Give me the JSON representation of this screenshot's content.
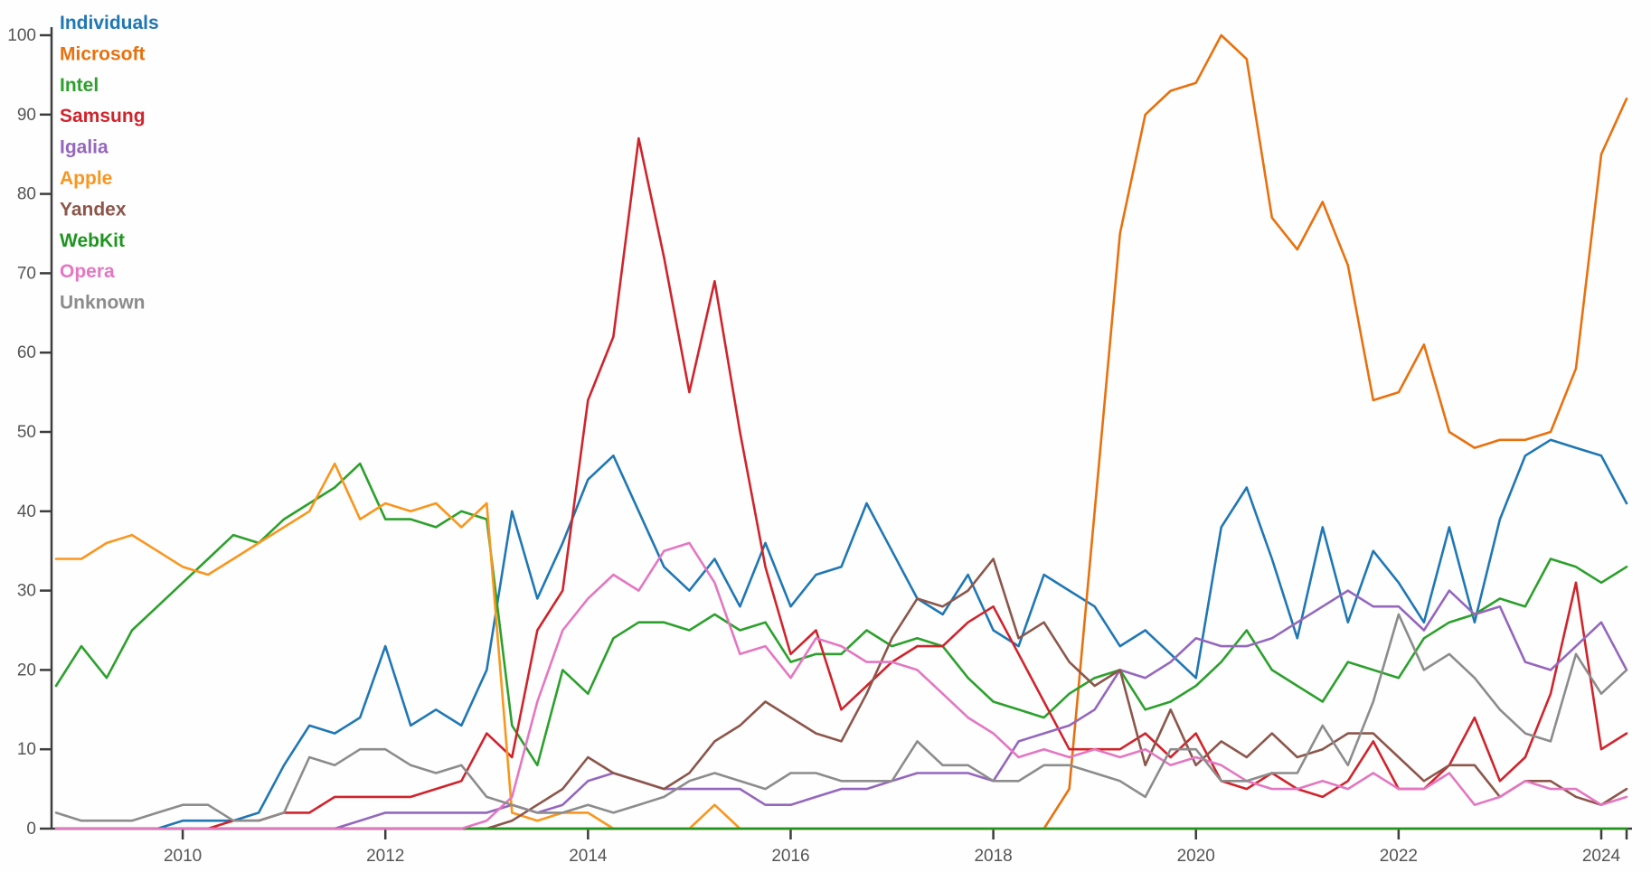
{
  "chart_data": {
    "type": "line",
    "description": "Share of contributions (%) by affiliation over time, quarterly",
    "x": {
      "start_year": 2008,
      "start_quarter": 4,
      "points": 63,
      "tick_years": [
        2010,
        2012,
        2014,
        2016,
        2018,
        2020,
        2022,
        2024
      ],
      "has_end_tick": true
    },
    "y": {
      "min": 0,
      "max": 100,
      "tick_step": 10,
      "tick_labels": [
        "0",
        "10",
        "20",
        "30",
        "40",
        "50",
        "60",
        "70",
        "80",
        "90",
        "100"
      ]
    },
    "grid": false,
    "legend_position": "top-left",
    "axis_color": "#3d3d3d",
    "tick_label_color": "#555555",
    "series": [
      {
        "name": "Individuals",
        "color": "#1f77b4",
        "values": [
          0,
          0,
          0,
          0,
          0,
          1,
          1,
          1,
          2,
          8,
          13,
          12,
          14,
          23,
          13,
          15,
          13,
          20,
          40,
          29,
          36,
          44,
          47,
          40,
          33,
          30,
          34,
          28,
          36,
          28,
          32,
          33,
          41,
          35,
          29,
          27,
          32,
          25,
          23,
          32,
          30,
          28,
          23,
          25,
          22,
          19,
          38,
          43,
          34,
          24,
          38,
          26,
          35,
          31,
          26,
          38,
          26,
          39,
          47,
          49,
          48,
          47,
          41
        ]
      },
      {
        "name": "Microsoft",
        "color": "#e8710e",
        "values": [
          0,
          0,
          0,
          0,
          0,
          0,
          0,
          0,
          0,
          0,
          0,
          0,
          0,
          0,
          0,
          0,
          0,
          0,
          0,
          0,
          0,
          0,
          0,
          0,
          0,
          0,
          0,
          0,
          0,
          0,
          0,
          0,
          0,
          0,
          0,
          0,
          0,
          0,
          0,
          0,
          5,
          40,
          75,
          90,
          93,
          94,
          100,
          97,
          77,
          73,
          79,
          71,
          54,
          55,
          61,
          50,
          48,
          49,
          49,
          50,
          58,
          85,
          92
        ]
      },
      {
        "name": "Intel",
        "color": "#2ca02c",
        "values": [
          18,
          23,
          19,
          25,
          28,
          31,
          34,
          37,
          36,
          39,
          41,
          43,
          46,
          39,
          39,
          38,
          40,
          39,
          13,
          8,
          20,
          17,
          24,
          26,
          26,
          25,
          27,
          25,
          26,
          21,
          22,
          22,
          25,
          23,
          24,
          23,
          19,
          16,
          15,
          14,
          17,
          19,
          20,
          15,
          16,
          18,
          21,
          25,
          20,
          18,
          16,
          21,
          20,
          19,
          24,
          26,
          27,
          29,
          28,
          34,
          33,
          31,
          33
        ]
      },
      {
        "name": "Samsung",
        "color": "#d0242c",
        "values": [
          0,
          0,
          0,
          0,
          0,
          0,
          0,
          1,
          1,
          2,
          2,
          4,
          4,
          4,
          4,
          5,
          6,
          12,
          9,
          25,
          30,
          54,
          62,
          87,
          72,
          55,
          69,
          50,
          33,
          22,
          25,
          15,
          18,
          21,
          23,
          23,
          26,
          28,
          22,
          16,
          10,
          10,
          10,
          12,
          9,
          12,
          6,
          5,
          7,
          5,
          4,
          6,
          11,
          5,
          5,
          8,
          14,
          6,
          9,
          17,
          31,
          10,
          12
        ]
      },
      {
        "name": "Igalia",
        "color": "#9467bd",
        "values": [
          0,
          0,
          0,
          0,
          0,
          0,
          0,
          0,
          0,
          0,
          0,
          0,
          1,
          2,
          2,
          2,
          2,
          2,
          3,
          2,
          3,
          6,
          7,
          6,
          5,
          5,
          5,
          5,
          3,
          3,
          4,
          5,
          5,
          6,
          7,
          7,
          7,
          6,
          11,
          12,
          13,
          15,
          20,
          19,
          21,
          24,
          23,
          23,
          24,
          26,
          28,
          30,
          28,
          28,
          25,
          30,
          27,
          28,
          21,
          20,
          23,
          26,
          20
        ]
      },
      {
        "name": "Apple",
        "color": "#f9961e",
        "values": [
          34,
          34,
          36,
          37,
          35,
          33,
          32,
          34,
          36,
          38,
          40,
          46,
          39,
          41,
          40,
          41,
          38,
          41,
          2,
          1,
          2,
          2,
          0,
          0,
          0,
          0,
          3,
          0,
          0,
          0,
          0,
          0,
          0,
          0,
          0,
          0,
          0,
          0,
          0,
          0,
          0,
          0,
          0,
          0,
          0,
          0,
          0,
          0,
          0,
          0,
          0,
          0,
          0,
          0,
          0,
          0,
          0,
          0,
          0,
          0,
          0,
          0,
          0
        ]
      },
      {
        "name": "Yandex",
        "color": "#8c564b",
        "values": [
          0,
          0,
          0,
          0,
          0,
          0,
          0,
          0,
          0,
          0,
          0,
          0,
          0,
          0,
          0,
          0,
          0,
          0,
          1,
          3,
          5,
          9,
          7,
          6,
          5,
          7,
          11,
          13,
          16,
          14,
          12,
          11,
          17,
          24,
          29,
          28,
          30,
          34,
          24,
          26,
          21,
          18,
          20,
          8,
          15,
          8,
          11,
          9,
          12,
          9,
          10,
          12,
          12,
          9,
          6,
          8,
          8,
          4,
          6,
          6,
          4,
          3,
          5
        ]
      },
      {
        "name": "WebKit",
        "color": "#1f9420",
        "values": [
          0,
          0,
          0,
          0,
          0,
          0,
          0,
          0,
          0,
          0,
          0,
          0,
          0,
          0,
          0,
          0,
          0,
          0,
          0,
          0,
          0,
          0,
          0,
          0,
          0,
          0,
          0,
          0,
          0,
          0,
          0,
          0,
          0,
          0,
          0,
          0,
          0,
          0,
          0,
          0,
          0,
          0,
          0,
          0,
          0,
          0,
          0,
          0,
          0,
          0,
          0,
          0,
          0,
          0,
          0,
          0,
          0,
          0,
          0,
          0,
          0,
          0,
          0
        ]
      },
      {
        "name": "Opera",
        "color": "#e377c2",
        "values": [
          0,
          0,
          0,
          0,
          0,
          0,
          0,
          0,
          0,
          0,
          0,
          0,
          0,
          0,
          0,
          0,
          0,
          1,
          4,
          16,
          25,
          29,
          32,
          30,
          35,
          36,
          31,
          22,
          23,
          19,
          24,
          23,
          21,
          21,
          20,
          17,
          14,
          12,
          9,
          10,
          9,
          10,
          9,
          10,
          8,
          9,
          8,
          6,
          5,
          5,
          6,
          5,
          7,
          5,
          5,
          7,
          3,
          4,
          6,
          5,
          5,
          3,
          4
        ]
      },
      {
        "name": "Unknown",
        "color": "#8c8c8c",
        "values": [
          2,
          1,
          1,
          1,
          2,
          3,
          3,
          1,
          1,
          2,
          9,
          8,
          10,
          10,
          8,
          7,
          8,
          4,
          3,
          2,
          2,
          3,
          2,
          3,
          4,
          6,
          7,
          6,
          5,
          7,
          7,
          6,
          6,
          6,
          11,
          8,
          8,
          6,
          6,
          8,
          8,
          7,
          6,
          4,
          10,
          10,
          6,
          6,
          7,
          7,
          13,
          8,
          16,
          27,
          20,
          22,
          19,
          15,
          12,
          11,
          22,
          17,
          20
        ]
      }
    ]
  },
  "legend": {
    "items": [
      "Individuals",
      "Microsoft",
      "Intel",
      "Samsung",
      "Igalia",
      "Apple",
      "Yandex",
      "WebKit",
      "Opera",
      "Unknown"
    ]
  }
}
